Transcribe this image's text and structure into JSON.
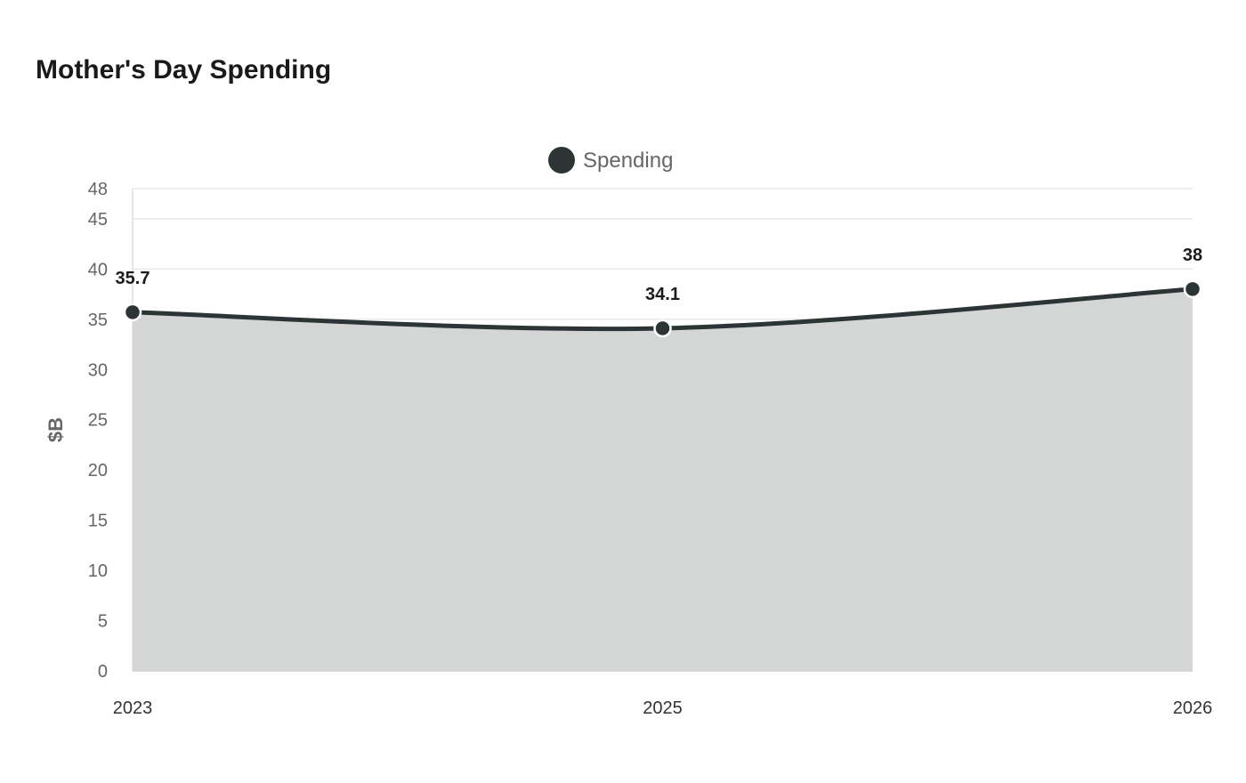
{
  "chart_data": {
    "type": "area",
    "title": "Mother's Day Spending",
    "categories": [
      "2023",
      "2025",
      "2026"
    ],
    "series": [
      {
        "name": "Spending",
        "values": [
          35.7,
          34.1,
          38
        ],
        "color": "#2d3436"
      }
    ],
    "ylabel": "$B",
    "xlabel": "",
    "ylim": [
      0,
      48
    ],
    "yticks": [
      0,
      5,
      10,
      15,
      20,
      25,
      30,
      35,
      40,
      45,
      48
    ],
    "grid": true,
    "legend": "top-center",
    "data_labels": true,
    "fill_color": "#d4d6d5"
  }
}
